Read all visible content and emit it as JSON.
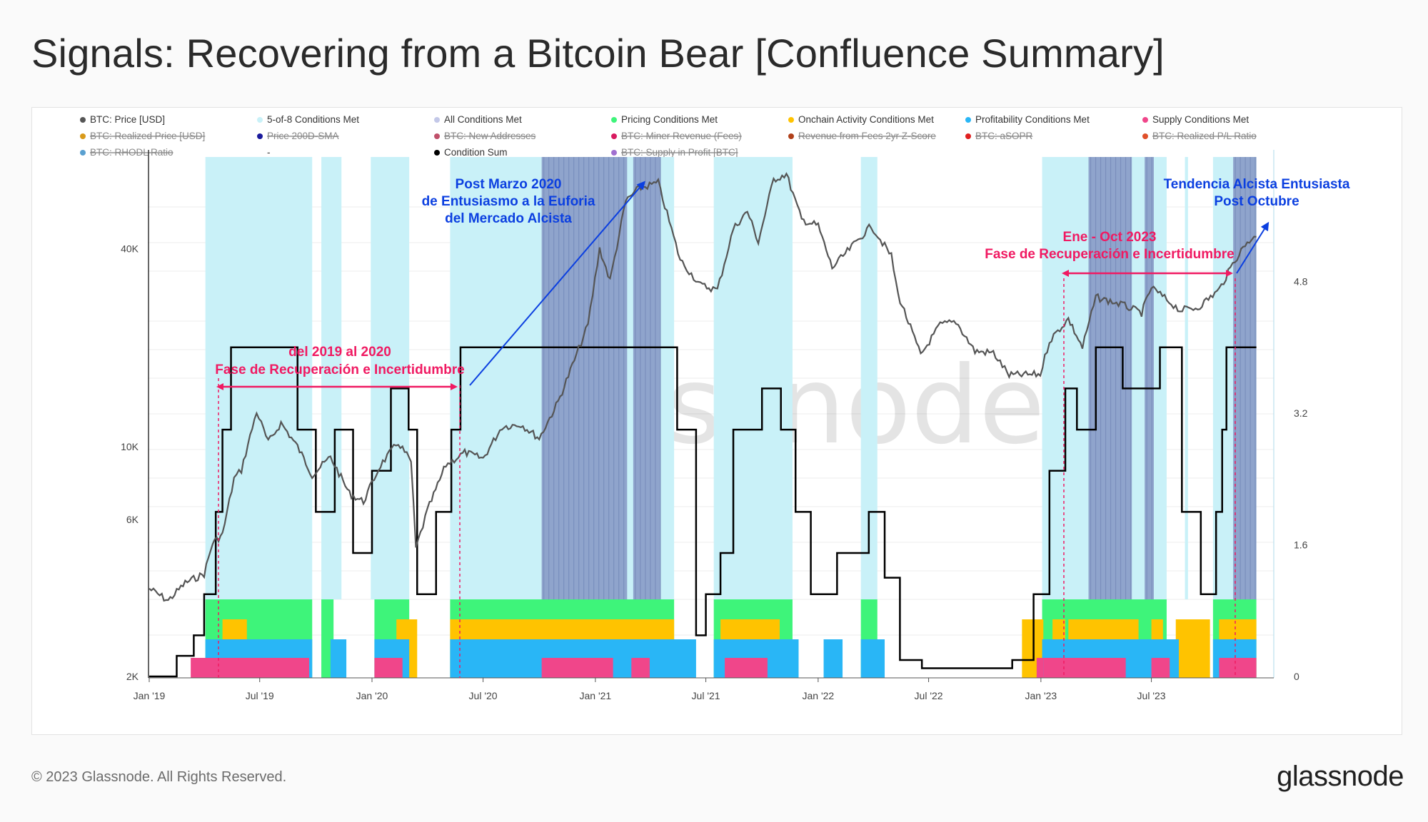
{
  "page": {
    "title": "Signals: Recovering from a Bitcoin Bear [Confluence Summary]",
    "copyright": "© 2023 Glassnode. All Rights Reserved.",
    "brand": "glassnode",
    "watermark": "glassnode"
  },
  "colors": {
    "price": "#555555",
    "five_of_eight": "#c9f1f8",
    "all_conditions": "#8fa4cc",
    "pricing": "#3ef47a",
    "onchain": "#ffc300",
    "profitability": "#29b6f6",
    "supply": "#f0468a",
    "condition_sum": "#000000",
    "annotation_red": "#f01a62",
    "annotation_blue": "#0b3fe0"
  },
  "legend": [
    {
      "label": "BTC: Price [USD]",
      "color": "#555555",
      "disabled": false
    },
    {
      "label": "5-of-8 Conditions Met",
      "color": "#c9f1f8",
      "disabled": false
    },
    {
      "label": "All Conditions Met",
      "color": "#c3c8e8",
      "disabled": false
    },
    {
      "label": "Pricing Conditions Met",
      "color": "#3ef47a",
      "disabled": false
    },
    {
      "label": "Onchain Activity Conditions Met",
      "color": "#ffc300",
      "disabled": false
    },
    {
      "label": "Profitability Conditions Met",
      "color": "#29b6f6",
      "disabled": false
    },
    {
      "label": "Supply Conditions Met",
      "color": "#f0468a",
      "disabled": false
    },
    {
      "label": "BTC: Realized Price [USD]",
      "color": "#d99a1a",
      "disabled": true
    },
    {
      "label": "Price 200D-SMA",
      "color": "#1a1a9c",
      "disabled": true
    },
    {
      "label": "BTC: New Addresses",
      "color": "#c0506a",
      "disabled": true
    },
    {
      "label": "BTC: Miner Revenue (Fees)",
      "color": "#d81b60",
      "disabled": true
    },
    {
      "label": "Revenue from Fees 2yr Z-Score",
      "color": "#b0401a",
      "disabled": true
    },
    {
      "label": "BTC: aSOPR",
      "color": "#e02020",
      "disabled": true
    },
    {
      "label": "BTC: Realized P/L Ratio",
      "color": "#e0502a",
      "disabled": true
    },
    {
      "label": "BTC: RHODL Ratio",
      "color": "#5aa0d0",
      "disabled": true
    },
    {
      "label": "-",
      "color": "",
      "disabled": false
    },
    {
      "label": "Condition Sum",
      "color": "#000000",
      "disabled": false
    },
    {
      "label": "BTC: Supply in Profit [BTC]",
      "color": "#a070d0",
      "disabled": true
    }
  ],
  "annotations": {
    "a1_line1": "del 2019 al 2020",
    "a1_line2": "Fase de Recuperación e Incertidumbre",
    "a2_line1": "Post Marzo 2020",
    "a2_line2": "de Entusiasmo a la Euforia",
    "a2_line3": "del Mercado Alcista",
    "a3_line1": "Ene - Oct 2023",
    "a3_line2": "Fase de Recuperación e Incertidumbre",
    "a4_line1": "Tendencia Alcista Entusiasta",
    "a4_line2": "Post Octubre"
  },
  "chart_data": {
    "type": "line",
    "title": "Signals: Recovering from a Bitcoin Bear [Confluence Summary]",
    "x_ticks": [
      "Jan '19",
      "Jul '19",
      "Jan '20",
      "Jul '20",
      "Jan '21",
      "Jul '21",
      "Jan '22",
      "Jul '22",
      "Jan '23",
      "Jul '23"
    ],
    "x_range": [
      "2019-01-01",
      "2023-12-31"
    ],
    "y_left": {
      "scale": "log",
      "ticks": [
        "2K",
        "6K",
        "10K",
        "40K"
      ],
      "tick_values": [
        2000,
        6000,
        10000,
        40000
      ],
      "range": [
        2000,
        80000
      ]
    },
    "y_right": {
      "scale": "linear",
      "ticks": [
        "0",
        "1.6",
        "3.2",
        "4.8"
      ],
      "tick_values": [
        0,
        1.6,
        3.2,
        4.8
      ],
      "range": [
        0,
        6.4
      ]
    },
    "grid": true,
    "legend_position": "top",
    "price_series": {
      "name": "BTC: Price [USD]",
      "points": [
        [
          "2019-01-01",
          3700
        ],
        [
          "2019-02-01",
          3400
        ],
        [
          "2019-03-01",
          3850
        ],
        [
          "2019-04-01",
          4100
        ],
        [
          "2019-04-15",
          5100
        ],
        [
          "2019-05-01",
          5400
        ],
        [
          "2019-05-20",
          8000
        ],
        [
          "2019-06-01",
          8500
        ],
        [
          "2019-06-26",
          12800
        ],
        [
          "2019-07-15",
          10300
        ],
        [
          "2019-08-05",
          11800
        ],
        [
          "2019-09-01",
          10000
        ],
        [
          "2019-09-25",
          8200
        ],
        [
          "2019-10-25",
          9300
        ],
        [
          "2019-11-25",
          7200
        ],
        [
          "2019-12-18",
          6800
        ],
        [
          "2020-01-15",
          8800
        ],
        [
          "2020-02-13",
          10300
        ],
        [
          "2020-03-05",
          9000
        ],
        [
          "2020-03-13",
          4900
        ],
        [
          "2020-04-01",
          6400
        ],
        [
          "2020-05-01",
          8800
        ],
        [
          "2020-06-01",
          9600
        ],
        [
          "2020-07-01",
          9200
        ],
        [
          "2020-08-01",
          11500
        ],
        [
          "2020-09-01",
          11700
        ],
        [
          "2020-10-01",
          10600
        ],
        [
          "2020-11-01",
          13700
        ],
        [
          "2020-12-01",
          19000
        ],
        [
          "2020-12-20",
          23500
        ],
        [
          "2021-01-08",
          40000
        ],
        [
          "2021-01-25",
          32000
        ],
        [
          "2021-02-20",
          56000
        ],
        [
          "2021-03-13",
          61000
        ],
        [
          "2021-04-14",
          63500
        ],
        [
          "2021-05-20",
          37000
        ],
        [
          "2021-06-22",
          31000
        ],
        [
          "2021-07-20",
          30000
        ],
        [
          "2021-08-15",
          46000
        ],
        [
          "2021-09-07",
          52000
        ],
        [
          "2021-09-25",
          42000
        ],
        [
          "2021-10-20",
          65000
        ],
        [
          "2021-11-10",
          67500
        ],
        [
          "2021-12-05",
          49000
        ],
        [
          "2022-01-01",
          47000
        ],
        [
          "2022-01-24",
          35000
        ],
        [
          "2022-03-29",
          47000
        ],
        [
          "2022-05-01",
          38000
        ],
        [
          "2022-05-12",
          29000
        ],
        [
          "2022-06-18",
          19000
        ],
        [
          "2022-07-20",
          23500
        ],
        [
          "2022-08-15",
          24000
        ],
        [
          "2022-09-15",
          19500
        ],
        [
          "2022-10-15",
          19300
        ],
        [
          "2022-11-10",
          16500
        ],
        [
          "2022-12-31",
          16600
        ],
        [
          "2023-01-15",
          21000
        ],
        [
          "2023-02-15",
          24500
        ],
        [
          "2023-03-10",
          20000
        ],
        [
          "2023-04-01",
          28500
        ],
        [
          "2023-05-15",
          27000
        ],
        [
          "2023-06-15",
          25500
        ],
        [
          "2023-07-01",
          30500
        ],
        [
          "2023-08-17",
          26000
        ],
        [
          "2023-09-15",
          26500
        ],
        [
          "2023-10-20",
          30000
        ],
        [
          "2023-11-15",
          37000
        ],
        [
          "2023-12-05",
          42000
        ],
        [
          "2023-12-20",
          43500
        ]
      ]
    },
    "condition_sum_series": {
      "name": "Condition Sum",
      "points": [
        [
          "2019-01-01",
          0
        ],
        [
          "2019-02-15",
          0.25
        ],
        [
          "2019-03-15",
          0.5
        ],
        [
          "2019-04-01",
          1
        ],
        [
          "2019-04-20",
          2
        ],
        [
          "2019-05-01",
          3
        ],
        [
          "2019-05-15",
          4
        ],
        [
          "2019-08-15",
          4
        ],
        [
          "2019-09-01",
          3
        ],
        [
          "2019-10-01",
          2
        ],
        [
          "2019-11-01",
          3
        ],
        [
          "2019-12-01",
          1.5
        ],
        [
          "2020-01-01",
          2.5
        ],
        [
          "2020-02-01",
          3.5
        ],
        [
          "2020-03-01",
          3
        ],
        [
          "2020-03-15",
          1
        ],
        [
          "2020-04-15",
          2
        ],
        [
          "2020-05-10",
          3
        ],
        [
          "2020-05-25",
          4
        ],
        [
          "2021-04-25",
          4
        ],
        [
          "2021-05-15",
          3
        ],
        [
          "2021-06-15",
          0.5
        ],
        [
          "2021-07-01",
          1
        ],
        [
          "2021-07-25",
          1.5
        ],
        [
          "2021-08-15",
          3
        ],
        [
          "2021-10-01",
          3.5
        ],
        [
          "2021-11-01",
          3
        ],
        [
          "2021-11-25",
          2
        ],
        [
          "2021-12-20",
          1
        ],
        [
          "2022-02-01",
          1.5
        ],
        [
          "2022-03-25",
          2
        ],
        [
          "2022-04-20",
          1.2
        ],
        [
          "2022-05-15",
          0.2
        ],
        [
          "2022-06-20",
          0.1
        ],
        [
          "2022-09-01",
          0.1
        ],
        [
          "2022-11-15",
          0.2
        ],
        [
          "2022-12-20",
          1
        ],
        [
          "2023-01-15",
          2.5
        ],
        [
          "2023-02-10",
          3.5
        ],
        [
          "2023-03-01",
          3
        ],
        [
          "2023-04-01",
          4
        ],
        [
          "2023-05-15",
          3.5
        ],
        [
          "2023-06-15",
          3.5
        ],
        [
          "2023-07-15",
          4
        ],
        [
          "2023-08-20",
          2
        ],
        [
          "2023-09-20",
          1
        ],
        [
          "2023-10-15",
          2
        ],
        [
          "2023-10-25",
          3
        ],
        [
          "2023-11-01",
          4
        ],
        [
          "2023-12-20",
          4
        ]
      ]
    },
    "regimes": {
      "five_of_eight": [
        [
          "2019-04-03",
          "2019-09-25"
        ],
        [
          "2019-10-10",
          "2019-11-12"
        ],
        [
          "2019-12-30",
          "2020-03-02"
        ],
        [
          "2020-05-08",
          "2021-05-10"
        ],
        [
          "2021-07-14",
          "2021-11-20"
        ],
        [
          "2022-03-12",
          "2022-04-08"
        ],
        [
          "2023-01-03",
          "2023-07-26"
        ],
        [
          "2023-08-25",
          "2023-08-30"
        ],
        [
          "2023-10-10",
          "2023-12-20"
        ]
      ],
      "all_conditions": [
        [
          "2020-10-05",
          "2021-02-22"
        ],
        [
          "2021-03-04",
          "2021-04-18"
        ],
        [
          "2023-03-20",
          "2023-05-30"
        ],
        [
          "2023-06-20",
          "2023-07-05"
        ],
        [
          "2023-11-12",
          "2023-12-20"
        ]
      ],
      "pricing": [
        [
          "2019-04-03",
          "2019-09-25"
        ],
        [
          "2019-10-10",
          "2019-10-30"
        ],
        [
          "2020-01-05",
          "2020-03-02"
        ],
        [
          "2020-05-08",
          "2021-05-10"
        ],
        [
          "2021-07-14",
          "2021-11-20"
        ],
        [
          "2022-03-12",
          "2022-04-08"
        ],
        [
          "2023-01-03",
          "2023-07-26"
        ],
        [
          "2023-10-10",
          "2023-12-20"
        ]
      ],
      "onchain": [
        [
          "2019-05-01",
          "2019-06-10"
        ],
        [
          "2020-02-10",
          "2020-03-15"
        ],
        [
          "2020-05-08",
          "2021-05-10"
        ],
        [
          "2021-07-25",
          "2021-10-30"
        ],
        [
          "2022-12-01",
          "2023-01-05"
        ],
        [
          "2023-01-20",
          "2023-02-10"
        ],
        [
          "2023-02-15",
          "2023-06-10"
        ],
        [
          "2023-07-01",
          "2023-07-20"
        ],
        [
          "2023-08-10",
          "2023-10-05"
        ],
        [
          "2023-10-20",
          "2023-12-20"
        ]
      ],
      "profitability": [
        [
          "2019-04-03",
          "2019-09-25"
        ],
        [
          "2019-10-25",
          "2019-11-20"
        ],
        [
          "2020-01-05",
          "2020-03-02"
        ],
        [
          "2020-05-08",
          "2021-06-15"
        ],
        [
          "2021-07-14",
          "2021-11-30"
        ],
        [
          "2022-01-10",
          "2022-02-10"
        ],
        [
          "2022-03-12",
          "2022-04-20"
        ],
        [
          "2023-01-03",
          "2023-08-15"
        ],
        [
          "2023-10-10",
          "2023-12-20"
        ]
      ],
      "supply": [
        [
          "2019-03-10",
          "2019-09-20"
        ],
        [
          "2020-01-05",
          "2020-02-20"
        ],
        [
          "2020-10-05",
          "2021-01-30"
        ],
        [
          "2021-03-01",
          "2021-03-31"
        ],
        [
          "2021-08-01",
          "2021-10-10"
        ],
        [
          "2022-12-25",
          "2023-01-05"
        ],
        [
          "2023-01-05",
          "2023-05-20"
        ],
        [
          "2023-07-01",
          "2023-07-31"
        ],
        [
          "2023-10-20",
          "2023-12-20"
        ]
      ]
    }
  }
}
